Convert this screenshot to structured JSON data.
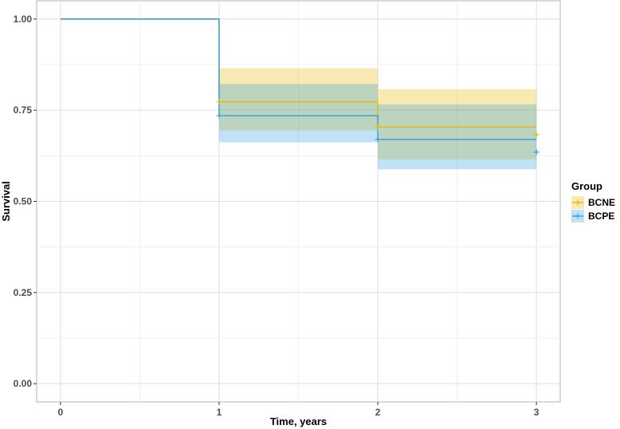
{
  "chart_data": {
    "type": "line",
    "subtype": "kaplan-meier-step",
    "xlabel": "Time, years",
    "ylabel": "Survival",
    "xlim": [
      -0.15,
      3.15
    ],
    "ylim": [
      -0.05,
      1.05
    ],
    "x_ticks": [
      0,
      1,
      2,
      3
    ],
    "x_tick_labels": [
      "0",
      "1",
      "2",
      "3"
    ],
    "y_ticks": [
      0,
      0.25,
      0.5,
      0.75,
      1.0
    ],
    "y_tick_labels": [
      "0.00",
      "0.25",
      "0.50",
      "0.75",
      "1.00"
    ],
    "grid": true,
    "legend": {
      "title": "Group",
      "position": "right",
      "entries": [
        "BCNE",
        "BCPE"
      ]
    },
    "series": [
      {
        "name": "BCNE",
        "color": "#E7B800",
        "steps": [
          {
            "x0": 0,
            "x1": 1,
            "y": 1.0,
            "lower": 1.0,
            "upper": 1.0
          },
          {
            "x0": 1,
            "x1": 2,
            "y": 0.773,
            "lower": 0.695,
            "upper": 0.865
          },
          {
            "x0": 2,
            "x1": 3,
            "y": 0.704,
            "lower": 0.615,
            "upper": 0.808
          }
        ],
        "censor_points": [
          {
            "x": 1,
            "y": 0.773
          },
          {
            "x": 2,
            "y": 0.704
          },
          {
            "x": 3,
            "y": 0.683
          }
        ]
      },
      {
        "name": "BCPE",
        "color": "#2E9FDF",
        "steps": [
          {
            "x0": 0,
            "x1": 1,
            "y": 1.0,
            "lower": 1.0,
            "upper": 1.0
          },
          {
            "x0": 1,
            "x1": 2,
            "y": 0.735,
            "lower": 0.662,
            "upper": 0.822
          },
          {
            "x0": 2,
            "x1": 3,
            "y": 0.67,
            "lower": 0.588,
            "upper": 0.766
          }
        ],
        "censor_points": [
          {
            "x": 1,
            "y": 0.735
          },
          {
            "x": 2,
            "y": 0.67
          },
          {
            "x": 3,
            "y": 0.635
          }
        ]
      }
    ]
  }
}
